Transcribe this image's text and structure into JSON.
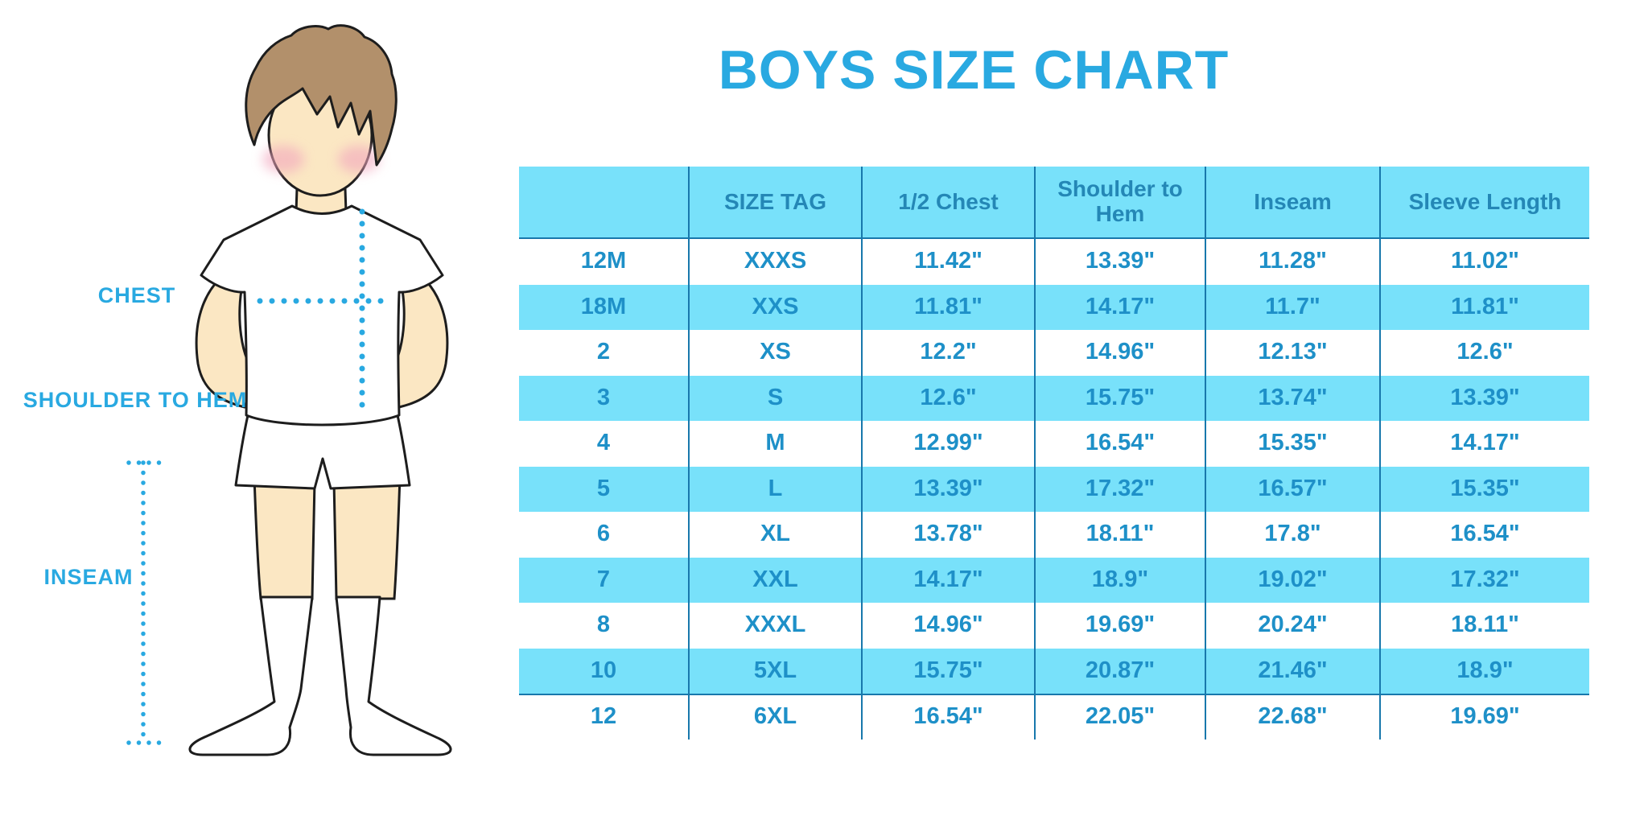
{
  "title": "BOYS SIZE CHART",
  "colors": {
    "accent_blue": "#29A9E1",
    "table_fill_cyan": "#78E1FA",
    "table_text_blue": "#1E90C8",
    "divider_blue": "#1878AC"
  },
  "diagram": {
    "labels": {
      "chest": "CHEST",
      "shoulder_to_hem": "SHOULDER TO HEM",
      "inseam": "INSEAM"
    }
  },
  "chart_data": {
    "type": "table",
    "title": "BOYS SIZE CHART",
    "units": "inches",
    "columns": [
      "",
      "SIZE TAG",
      "1/2 Chest",
      "Shoulder to Hem",
      "Inseam",
      "Sleeve Length"
    ],
    "rows": [
      [
        "12M",
        "XXXS",
        "11.42\"",
        "13.39\"",
        "11.28\"",
        "11.02\""
      ],
      [
        "18M",
        "XXS",
        "11.81\"",
        "14.17\"",
        "11.7\"",
        "11.81\""
      ],
      [
        "2",
        "XS",
        "12.2\"",
        "14.96\"",
        "12.13\"",
        "12.6\""
      ],
      [
        "3",
        "S",
        "12.6\"",
        "15.75\"",
        "13.74\"",
        "13.39\""
      ],
      [
        "4",
        "M",
        "12.99\"",
        "16.54\"",
        "15.35\"",
        "14.17\""
      ],
      [
        "5",
        "L",
        "13.39\"",
        "17.32\"",
        "16.57\"",
        "15.35\""
      ],
      [
        "6",
        "XL",
        "13.78\"",
        "18.11\"",
        "17.8\"",
        "16.54\""
      ],
      [
        "7",
        "XXL",
        "14.17\"",
        "18.9\"",
        "19.02\"",
        "17.32\""
      ],
      [
        "8",
        "XXXL",
        "14.96\"",
        "19.69\"",
        "20.24\"",
        "18.11\""
      ],
      [
        "10",
        "5XL",
        "15.75\"",
        "20.87\"",
        "21.46\"",
        "18.9\""
      ],
      [
        "12",
        "6XL",
        "16.54\"",
        "22.05\"",
        "22.68\"",
        "19.69\""
      ]
    ],
    "striped_row_indices": [
      1,
      3,
      5,
      7,
      9
    ],
    "layout": {
      "stripe_style": "alternating white and cyan",
      "dividers": "vertical dark blue lines between columns"
    }
  }
}
